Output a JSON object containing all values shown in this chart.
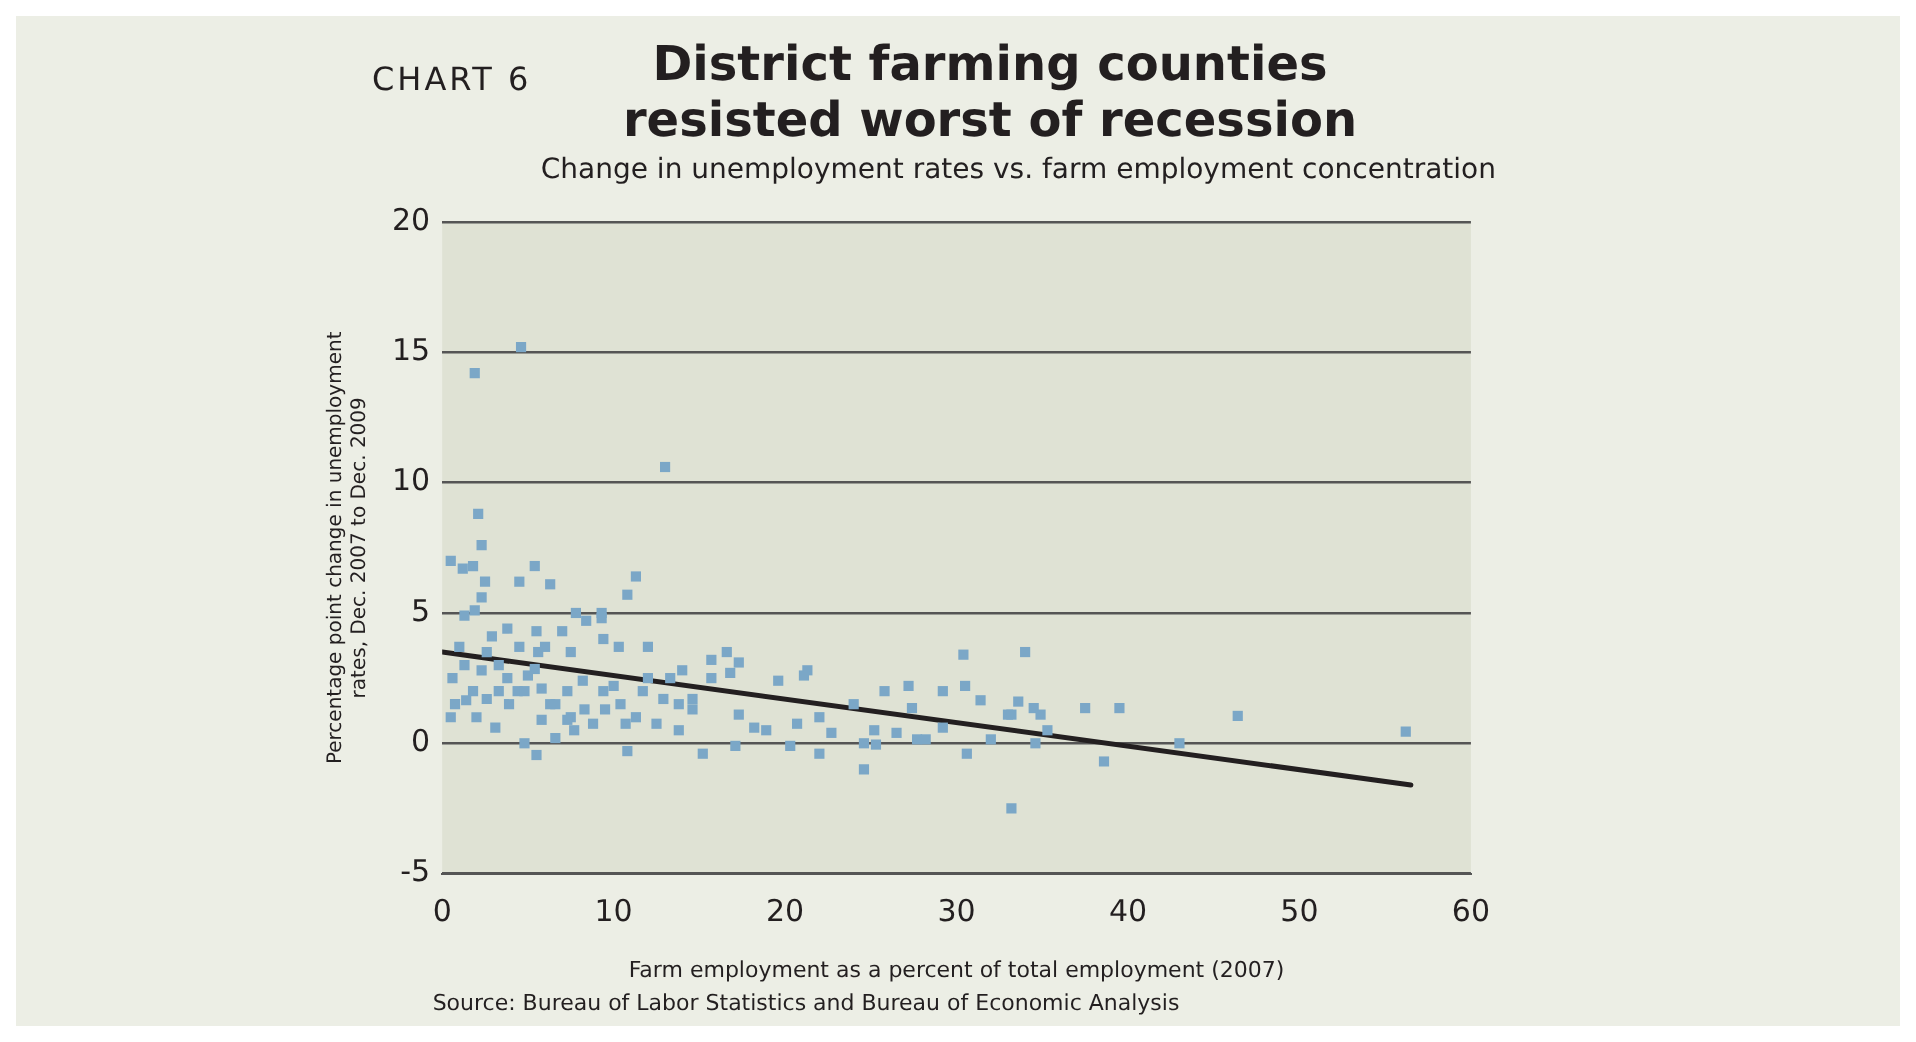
{
  "chart_data": {
    "type": "scatter",
    "title": "District farming counties resisted worst of recession",
    "subtitle": "Change in unemployment rates vs. farm employment concentration",
    "xlabel": "Farm employment as a percent of total employment (2007)",
    "ylabel": "Percentage point change in unemployment rates, Dec. 2007 to Dec. 2009",
    "annotations": [
      "CHART 6",
      "Source: Bureau of Labor Statistics and Bureau of Economic Analysis"
    ],
    "xlim": [
      0,
      60
    ],
    "xticks": [
      0,
      10,
      20,
      30,
      40,
      50,
      60
    ],
    "ylim": [
      -5,
      20
    ],
    "yticks": [
      -5,
      0,
      5,
      10,
      15,
      20
    ],
    "grid": "y",
    "legend": false,
    "series": [
      {
        "color": "#7ba7c7",
        "marker": "square",
        "x": [
          4.6,
          1.9,
          13.0,
          2.1,
          2.3,
          0.5,
          1.2,
          1.8,
          5.4,
          4.5,
          6.3,
          2.5,
          11.3,
          10.8,
          2.3,
          1.9,
          7.8,
          9.3,
          8.4,
          9.3,
          34.0,
          31.4,
          33.6,
          34.5,
          37.5,
          39.5,
          46.4,
          56.2,
          43.0,
          38.6,
          33.2,
          32.0,
          33.0,
          35.3,
          34.6,
          34.9,
          30.4,
          16.6,
          15.7,
          17.3,
          16.8,
          15.7,
          21.3,
          21.1,
          19.6,
          25.8,
          27.2,
          29.2,
          30.5,
          24.6,
          24.6,
          15.2,
          20.3,
          22.0,
          30.6,
          27.7,
          25.3,
          17.1,
          33.2,
          22.7,
          18.2,
          29.2,
          26.5,
          18.9,
          22.0,
          24.0,
          27.4,
          17.3,
          20.7,
          25.2,
          28.2,
          0.6,
          1.3,
          1.8,
          2.3,
          2.6,
          3.3,
          3.8,
          4.4,
          5.0,
          5.6,
          5.8,
          6.6,
          7.3,
          7.5,
          8.2,
          8.8,
          9.4,
          10.0,
          10.4,
          10.7,
          10.8,
          11.7,
          12.0,
          12.5,
          13.3,
          13.8,
          14.0,
          14.6,
          0.5,
          2.0,
          3.1,
          4.8,
          5.5,
          6.6,
          7.7,
          9.4,
          10.3,
          7.0,
          5.5,
          3.8,
          2.9,
          1.3,
          1.0,
          4.5,
          6.0,
          7.5,
          3.3,
          5.4,
          0.75,
          1.4,
          2.6,
          3.9,
          4.8,
          6.3,
          8.3,
          9.5,
          11.3,
          12.0,
          12.9,
          13.8,
          14.6,
          7.3,
          5.8
        ],
        "values": [
          15.2,
          14.2,
          10.6,
          8.8,
          7.6,
          7.0,
          6.7,
          6.8,
          6.8,
          6.2,
          6.1,
          6.2,
          6.4,
          5.7,
          5.6,
          5.1,
          5.0,
          5.0,
          4.7,
          4.8,
          3.5,
          1.65,
          1.6,
          1.35,
          1.35,
          1.35,
          1.05,
          0.45,
          0.0,
          -0.7,
          -2.5,
          0.15,
          1.1,
          0.5,
          0.0,
          1.1,
          3.4,
          3.5,
          3.2,
          3.1,
          2.7,
          2.5,
          2.8,
          2.6,
          2.4,
          2.0,
          2.2,
          2.0,
          2.2,
          0.0,
          -1.0,
          -0.4,
          -0.1,
          -0.4,
          -0.4,
          0.15,
          -0.05,
          -0.1,
          1.1,
          0.4,
          0.6,
          0.6,
          0.4,
          0.5,
          1.0,
          1.5,
          1.35,
          1.1,
          0.75,
          0.5,
          0.15,
          2.5,
          3.0,
          2.0,
          2.8,
          3.5,
          2.0,
          2.5,
          2.0,
          2.6,
          3.5,
          2.1,
          1.5,
          2.0,
          1.0,
          2.4,
          0.75,
          2.0,
          2.2,
          1.5,
          0.75,
          -0.3,
          2.0,
          3.7,
          0.75,
          2.5,
          1.5,
          2.8,
          1.3,
          1.0,
          1.0,
          0.6,
          0.0,
          -0.45,
          0.2,
          0.5,
          4.0,
          3.7,
          4.3,
          4.3,
          4.4,
          4.1,
          4.9,
          3.7,
          3.7,
          3.7,
          3.5,
          3.0,
          2.85,
          1.5,
          1.65,
          1.7,
          1.5,
          2.0,
          1.5,
          1.3,
          1.3,
          1.0,
          2.5,
          1.7,
          0.5,
          1.7,
          0.9,
          0.9
        ]
      },
      {
        "type": "line",
        "color": "#231f20",
        "marker": "none",
        "x": [
          0,
          56.5
        ],
        "values": [
          3.5,
          -1.6
        ]
      }
    ]
  }
}
